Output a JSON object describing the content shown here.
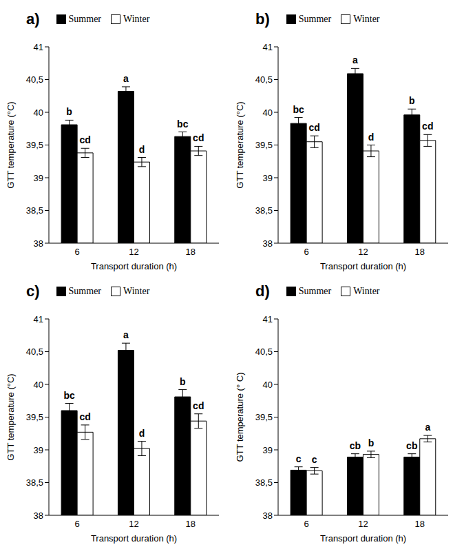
{
  "chart_data": [
    {
      "type": "bar",
      "title": "a)",
      "x_label": "Transport duration (h)",
      "y_label": "GTT temperature (°C)",
      "categories": [
        "6",
        "12",
        "18"
      ],
      "ylim": [
        38,
        41
      ],
      "yticks": [
        38,
        {
          "value": 38.5,
          "label": "38,5"
        },
        39,
        {
          "value": 39.5,
          "label": "39,5"
        },
        40,
        {
          "value": 40.5,
          "label": "40,5"
        },
        41
      ],
      "legend": "top",
      "grid": false,
      "series": [
        {
          "name": "Summer",
          "color": "#000000",
          "values": [
            39.81,
            40.32,
            39.63
          ],
          "errors": [
            0.07,
            0.07,
            0.07
          ],
          "letters": [
            "b",
            "a",
            "bc"
          ]
        },
        {
          "name": "Winter",
          "color": "#ffffff",
          "values": [
            39.38,
            39.24,
            39.41
          ],
          "errors": [
            0.07,
            0.07,
            0.07
          ],
          "letters": [
            "cd",
            "d",
            "cd"
          ]
        }
      ]
    },
    {
      "type": "bar",
      "title": "b)",
      "x_label": "Transport duration (h)",
      "y_label": "GTT temperature (°C)",
      "categories": [
        "6",
        "12",
        "18"
      ],
      "ylim": [
        38,
        41
      ],
      "yticks": [
        38,
        {
          "value": 38.5,
          "label": "38,5"
        },
        39,
        {
          "value": 39.5,
          "label": "39,5"
        },
        40,
        {
          "value": 40.5,
          "label": "40,5"
        },
        41
      ],
      "legend": "top",
      "grid": false,
      "series": [
        {
          "name": "Summer",
          "color": "#000000",
          "values": [
            39.83,
            40.59,
            39.96
          ],
          "errors": [
            0.09,
            0.08,
            0.09
          ],
          "letters": [
            "bc",
            "a",
            "b"
          ]
        },
        {
          "name": "Winter",
          "color": "#ffffff",
          "values": [
            39.55,
            39.41,
            39.57
          ],
          "errors": [
            0.09,
            0.09,
            0.09
          ],
          "letters": [
            "cd",
            "d",
            "cd"
          ]
        }
      ]
    },
    {
      "type": "bar",
      "title": "c)",
      "x_label": "Transport duration (h)",
      "y_label": "GTT temperature (°C)",
      "categories": [
        "6",
        "12",
        "18"
      ],
      "ylim": [
        38,
        41
      ],
      "yticks": [
        38,
        {
          "value": 38.5,
          "label": "38,5"
        },
        39,
        {
          "value": 39.5,
          "label": "39,5"
        },
        40,
        {
          "value": 40.5,
          "label": "40,5"
        },
        41
      ],
      "legend": "top",
      "grid": false,
      "series": [
        {
          "name": "Summer",
          "color": "#000000",
          "values": [
            39.6,
            40.52,
            39.81
          ],
          "errors": [
            0.11,
            0.11,
            0.11
          ],
          "letters": [
            "bc",
            "a",
            "b"
          ]
        },
        {
          "name": "Winter",
          "color": "#ffffff",
          "values": [
            39.27,
            39.02,
            39.44
          ],
          "errors": [
            0.11,
            0.11,
            0.11
          ],
          "letters": [
            "cd",
            "d",
            "cd"
          ]
        }
      ]
    },
    {
      "type": "bar",
      "title": "d)",
      "x_label": "Transport duration (h)",
      "y_label": "GTT temperature (° C)",
      "categories": [
        "6",
        "12",
        "18"
      ],
      "ylim": [
        38,
        41
      ],
      "yticks": [
        38,
        {
          "value": 38.5,
          "label": "38,5"
        },
        39,
        {
          "value": 39.5,
          "label": "39,5"
        },
        40,
        {
          "value": 40.5,
          "label": "40,5"
        },
        41
      ],
      "legend": "top",
      "grid": false,
      "series": [
        {
          "name": "Summer",
          "color": "#000000",
          "values": [
            38.69,
            38.89,
            38.89
          ],
          "errors": [
            0.05,
            0.05,
            0.05
          ],
          "letters": [
            "c",
            "cb",
            "cb"
          ]
        },
        {
          "name": "Winter",
          "color": "#ffffff",
          "values": [
            38.68,
            38.93,
            39.17
          ],
          "errors": [
            0.05,
            0.05,
            0.05
          ],
          "letters": [
            "c",
            "b",
            "a"
          ]
        }
      ]
    }
  ]
}
